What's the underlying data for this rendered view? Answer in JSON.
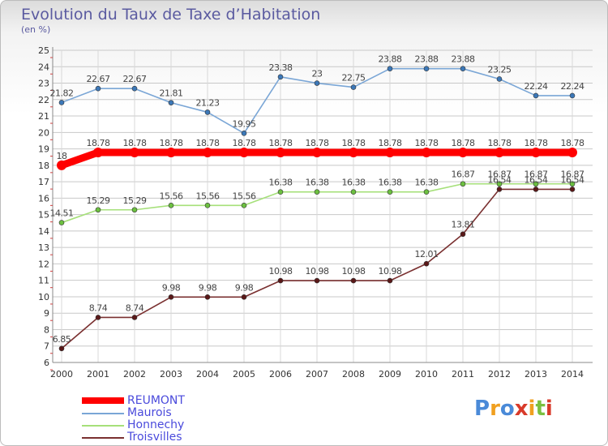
{
  "title": "Evolution du Taux de Taxe d’Habitation",
  "subtitle": "(en %)",
  "logo_text": "Proxiti",
  "chart_data": {
    "type": "line",
    "x": [
      "2000",
      "2001",
      "2002",
      "2003",
      "2004",
      "2005",
      "2006",
      "2007",
      "2008",
      "2009",
      "2010",
      "2011",
      "2012",
      "2013",
      "2014"
    ],
    "ylim": [
      6,
      25
    ],
    "yticks": [
      6,
      7,
      8,
      9,
      10,
      11,
      12,
      13,
      14,
      15,
      16,
      17,
      18,
      19,
      20,
      21,
      22,
      23,
      24,
      25
    ],
    "grid": true,
    "legend_position": "bottom-left",
    "series": [
      {
        "name": "Maurois",
        "color": "#7aa6d6",
        "marker": "#3c78b8",
        "values": [
          21.82,
          22.67,
          22.67,
          21.81,
          21.23,
          19.95,
          23.38,
          23,
          22.75,
          23.88,
          23.88,
          23.88,
          23.25,
          22.24,
          22.24
        ],
        "labels": [
          "21.82",
          "22.67",
          "22.67",
          "21.81",
          "21.23",
          "19.95",
          "23.38",
          "23",
          "22.75",
          "23.88",
          "23.88",
          "23.88",
          "23.25",
          "22.24",
          "22.24"
        ]
      },
      {
        "name": "Honnechy",
        "color": "#a6e07a",
        "marker": "#6cc040",
        "values": [
          14.51,
          15.29,
          15.29,
          15.56,
          15.56,
          15.56,
          16.38,
          16.38,
          16.38,
          16.38,
          16.38,
          16.87,
          16.87,
          16.87,
          16.87
        ],
        "labels": [
          "14.51",
          "15.29",
          "15.29",
          "15.56",
          "15.56",
          "15.56",
          "16.38",
          "16.38",
          "16.38",
          "16.38",
          "16.38",
          "16.87",
          "16.87",
          "16.87",
          "16.87"
        ]
      },
      {
        "name": "Troisvilles",
        "color": "#7a3030",
        "marker": "#5a1818",
        "values": [
          6.85,
          8.74,
          8.74,
          9.98,
          9.98,
          9.98,
          10.98,
          10.98,
          10.98,
          10.98,
          12.01,
          13.81,
          16.54,
          16.54,
          16.54
        ],
        "labels": [
          "6.85",
          "8.74",
          "8.74",
          "9.98",
          "9.98",
          "9.98",
          "10.98",
          "10.98",
          "10.98",
          "10.98",
          "12.01",
          "13.81",
          "16.54",
          "16.54",
          "16.54"
        ]
      },
      {
        "name": "REUMONT",
        "color": "#ff0000",
        "marker": "#ff0000",
        "values": [
          18,
          18.78,
          18.78,
          18.78,
          18.78,
          18.78,
          18.78,
          18.78,
          18.78,
          18.78,
          18.78,
          18.78,
          18.78,
          18.78,
          18.78
        ],
        "labels": [
          "18",
          "18.78",
          "18.78",
          "18.78",
          "18.78",
          "18.78",
          "18.78",
          "18.78",
          "18.78",
          "18.78",
          "18.78",
          "18.78",
          "18.78",
          "18.78",
          "18.78"
        ]
      }
    ]
  },
  "legend": [
    {
      "name": "REUMONT",
      "color": "#ff0000"
    },
    {
      "name": "Maurois",
      "color": "#7aa6d6"
    },
    {
      "name": "Honnechy",
      "color": "#a6e07a"
    },
    {
      "name": "Troisvilles",
      "color": "#7a3030"
    }
  ]
}
